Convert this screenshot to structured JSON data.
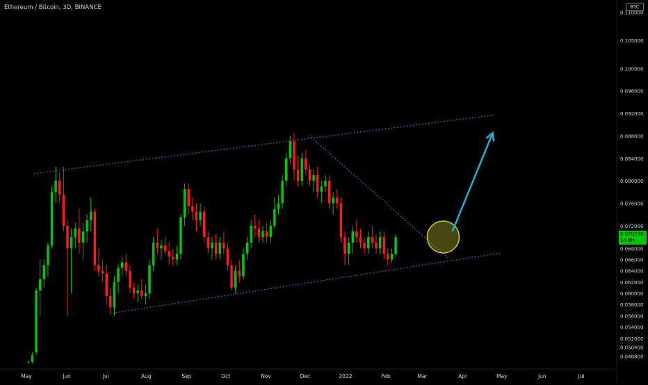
{
  "header": {
    "title": "Ethereum / Bitcoin, 3D, BINANCE",
    "currency_badge": "BTC"
  },
  "price_tag": {
    "price": "0.070338",
    "countdown": "1d 8h"
  },
  "colors": {
    "up": "#00c805",
    "down": "#ff1a1a",
    "channel": "#c040ff",
    "arrow": "#1fb2d8",
    "highlight": "#c8c832"
  },
  "chart_data": {
    "type": "candlestick",
    "title": "",
    "xlabel": "",
    "ylabel": "",
    "grid": false,
    "ylim": [
      0.0474,
      0.1114
    ],
    "xlim": [
      "2021-05-01",
      "2022-07-25"
    ],
    "x_ticks": [
      {
        "label": "May",
        "date": "2021-05-01"
      },
      {
        "label": "Jun",
        "date": "2021-06-01"
      },
      {
        "label": "Jul",
        "date": "2021-07-01"
      },
      {
        "label": "Aug",
        "date": "2021-08-01"
      },
      {
        "label": "Sep",
        "date": "2021-09-01"
      },
      {
        "label": "Oct",
        "date": "2021-10-01"
      },
      {
        "label": "Nov",
        "date": "2021-11-01"
      },
      {
        "label": "Dec",
        "date": "2021-12-01"
      },
      {
        "label": "2022",
        "date": "2022-01-01"
      },
      {
        "label": "Feb",
        "date": "2022-02-01"
      },
      {
        "label": "Mar",
        "date": "2022-03-01"
      },
      {
        "label": "Apr",
        "date": "2022-04-01"
      },
      {
        "label": "May",
        "date": "2022-05-01"
      },
      {
        "label": "Jun",
        "date": "2022-06-01"
      },
      {
        "label": "Jul",
        "date": "2022-07-01"
      }
    ],
    "y_ticks": [
      "0.048800",
      "0.050400",
      "0.052000",
      "0.054000",
      "0.056000",
      "0.058000",
      "0.060000",
      "0.062000",
      "0.064000",
      "0.066000",
      "0.068000",
      "0.072000",
      "0.076000",
      "0.080000",
      "0.084000",
      "0.088000",
      "0.092000",
      "0.096000",
      "0.100000",
      "0.105000",
      "0.110000"
    ],
    "candle_start": "2021-05-01",
    "candle_interval_days": 3,
    "candles": [
      [
        0.0477,
        0.048,
        0.0475,
        0.0478
      ],
      [
        0.0478,
        0.0495,
        0.0476,
        0.049
      ],
      [
        0.0495,
        0.061,
        0.049,
        0.0605
      ],
      [
        0.0605,
        0.066,
        0.056,
        0.0625
      ],
      [
        0.0625,
        0.066,
        0.061,
        0.065
      ],
      [
        0.065,
        0.069,
        0.063,
        0.0685
      ],
      [
        0.0685,
        0.079,
        0.068,
        0.078
      ],
      [
        0.078,
        0.0825,
        0.076,
        0.08
      ],
      [
        0.08,
        0.0815,
        0.076,
        0.0775
      ],
      [
        0.0775,
        0.0825,
        0.071,
        0.072
      ],
      [
        0.072,
        0.073,
        0.056,
        0.068
      ],
      [
        0.068,
        0.0715,
        0.06,
        0.07
      ],
      [
        0.07,
        0.0725,
        0.068,
        0.0715
      ],
      [
        0.0715,
        0.075,
        0.067,
        0.069
      ],
      [
        0.069,
        0.0725,
        0.066,
        0.071
      ],
      [
        0.071,
        0.074,
        0.069,
        0.073
      ],
      [
        0.073,
        0.077,
        0.071,
        0.0745
      ],
      [
        0.0745,
        0.075,
        0.064,
        0.065
      ],
      [
        0.065,
        0.068,
        0.063,
        0.064
      ],
      [
        0.064,
        0.066,
        0.062,
        0.0635
      ],
      [
        0.0635,
        0.065,
        0.058,
        0.0595
      ],
      [
        0.0595,
        0.061,
        0.0565,
        0.0575
      ],
      [
        0.0575,
        0.063,
        0.056,
        0.062
      ],
      [
        0.062,
        0.065,
        0.06,
        0.0645
      ],
      [
        0.0645,
        0.0665,
        0.063,
        0.0655
      ],
      [
        0.0655,
        0.067,
        0.063,
        0.064
      ],
      [
        0.064,
        0.065,
        0.06,
        0.061
      ],
      [
        0.061,
        0.062,
        0.059,
        0.06
      ],
      [
        0.06,
        0.0615,
        0.0585,
        0.0605
      ],
      [
        0.0605,
        0.0625,
        0.059,
        0.0595
      ],
      [
        0.0595,
        0.0615,
        0.058,
        0.06
      ],
      [
        0.06,
        0.066,
        0.059,
        0.065
      ],
      [
        0.065,
        0.07,
        0.064,
        0.069
      ],
      [
        0.069,
        0.0715,
        0.067,
        0.068
      ],
      [
        0.068,
        0.0695,
        0.066,
        0.0685
      ],
      [
        0.0685,
        0.07,
        0.067,
        0.0675
      ],
      [
        0.0675,
        0.069,
        0.065,
        0.0665
      ],
      [
        0.0665,
        0.068,
        0.065,
        0.066
      ],
      [
        0.066,
        0.0685,
        0.065,
        0.067
      ],
      [
        0.067,
        0.074,
        0.066,
        0.0735
      ],
      [
        0.0735,
        0.0795,
        0.072,
        0.0785
      ],
      [
        0.0785,
        0.0795,
        0.074,
        0.0755
      ],
      [
        0.0755,
        0.077,
        0.073,
        0.0745
      ],
      [
        0.0745,
        0.076,
        0.071,
        0.073
      ],
      [
        0.073,
        0.076,
        0.072,
        0.0745
      ],
      [
        0.0745,
        0.0755,
        0.069,
        0.07
      ],
      [
        0.07,
        0.071,
        0.067,
        0.068
      ],
      [
        0.068,
        0.07,
        0.066,
        0.069
      ],
      [
        0.069,
        0.0705,
        0.066,
        0.067
      ],
      [
        0.067,
        0.07,
        0.066,
        0.069
      ],
      [
        0.069,
        0.071,
        0.067,
        0.068
      ],
      [
        0.068,
        0.069,
        0.064,
        0.065
      ],
      [
        0.065,
        0.066,
        0.0605,
        0.061
      ],
      [
        0.061,
        0.065,
        0.06,
        0.064
      ],
      [
        0.064,
        0.066,
        0.062,
        0.063
      ],
      [
        0.063,
        0.068,
        0.0625,
        0.067
      ],
      [
        0.067,
        0.07,
        0.066,
        0.069
      ],
      [
        0.069,
        0.073,
        0.068,
        0.072
      ],
      [
        0.072,
        0.074,
        0.07,
        0.0715
      ],
      [
        0.0715,
        0.073,
        0.069,
        0.07
      ],
      [
        0.07,
        0.072,
        0.069,
        0.071
      ],
      [
        0.071,
        0.0725,
        0.069,
        0.07
      ],
      [
        0.07,
        0.073,
        0.069,
        0.072
      ],
      [
        0.072,
        0.077,
        0.0715,
        0.075
      ],
      [
        0.075,
        0.0775,
        0.074,
        0.076
      ],
      [
        0.076,
        0.081,
        0.075,
        0.08
      ],
      [
        0.08,
        0.085,
        0.079,
        0.084
      ],
      [
        0.084,
        0.088,
        0.083,
        0.087
      ],
      [
        0.087,
        0.0885,
        0.08,
        0.082
      ],
      [
        0.082,
        0.0845,
        0.079,
        0.08
      ],
      [
        0.08,
        0.085,
        0.079,
        0.084
      ],
      [
        0.084,
        0.0855,
        0.081,
        0.082
      ],
      [
        0.082,
        0.083,
        0.079,
        0.08
      ],
      [
        0.08,
        0.082,
        0.078,
        0.081
      ],
      [
        0.081,
        0.0825,
        0.077,
        0.078
      ],
      [
        0.078,
        0.08,
        0.076,
        0.079
      ],
      [
        0.079,
        0.081,
        0.078,
        0.08
      ],
      [
        0.08,
        0.081,
        0.075,
        0.076
      ],
      [
        0.076,
        0.078,
        0.074,
        0.077
      ],
      [
        0.077,
        0.0785,
        0.075,
        0.076
      ],
      [
        0.076,
        0.077,
        0.069,
        0.07
      ],
      [
        0.07,
        0.071,
        0.065,
        0.067
      ],
      [
        0.067,
        0.07,
        0.065,
        0.069
      ],
      [
        0.069,
        0.072,
        0.067,
        0.071
      ],
      [
        0.071,
        0.073,
        0.069,
        0.07
      ],
      [
        0.07,
        0.0715,
        0.068,
        0.069
      ],
      [
        0.069,
        0.07,
        0.067,
        0.068
      ],
      [
        0.068,
        0.071,
        0.067,
        0.07
      ],
      [
        0.07,
        0.072,
        0.068,
        0.069
      ],
      [
        0.069,
        0.0705,
        0.067,
        0.068
      ],
      [
        0.068,
        0.071,
        0.067,
        0.07
      ],
      [
        0.07,
        0.071,
        0.066,
        0.067
      ],
      [
        0.067,
        0.068,
        0.065,
        0.066
      ],
      [
        0.066,
        0.068,
        0.0655,
        0.067
      ],
      [
        0.067,
        0.0705,
        0.0665,
        0.07
      ]
    ]
  },
  "annotations": {
    "upper_channel": [
      [
        "2021-05-07",
        0.0813
      ],
      [
        "2022-04-25",
        0.0917
      ]
    ],
    "lower_channel": [
      [
        "2021-07-04",
        0.0564
      ],
      [
        "2022-05-01",
        0.0672
      ]
    ],
    "downtrend": [
      [
        "2021-12-04",
        0.0881
      ],
      [
        "2022-03-22",
        0.066
      ]
    ],
    "highlight_circle": {
      "date": "2022-03-17",
      "value": 0.07
    },
    "projection_arrow": [
      [
        "2022-03-24",
        0.071
      ],
      [
        "2022-04-24",
        0.0885
      ]
    ]
  }
}
